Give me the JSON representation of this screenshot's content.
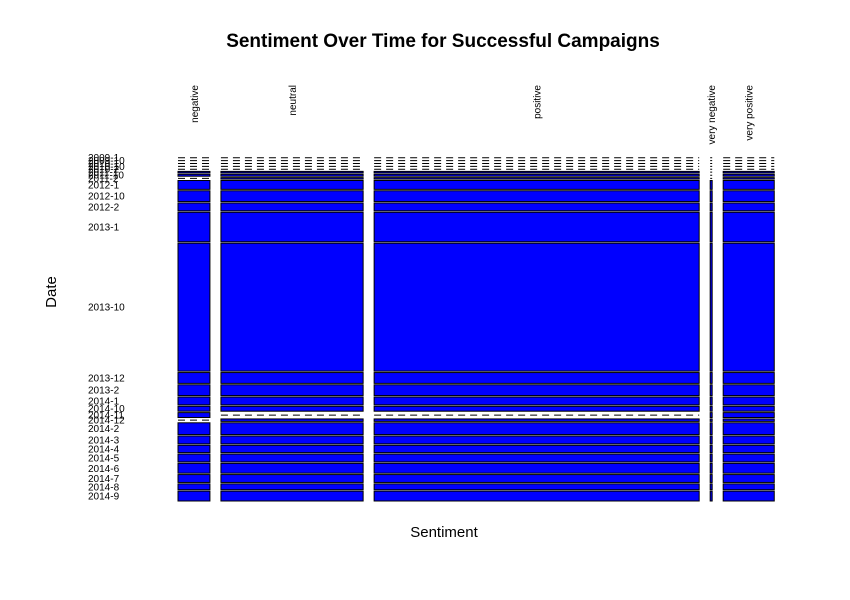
{
  "chart_data": {
    "type": "mosaic",
    "title": "Sentiment Over Time for Successful Campaigns",
    "xlabel": "Sentiment",
    "ylabel": "Date",
    "fill_color": "#0000ff",
    "outline_color": "#000000",
    "columns": [
      {
        "label": "negative",
        "share": 0.055
      },
      {
        "label": "neutral",
        "share": 0.245
      },
      {
        "label": "positive",
        "share": 0.56
      },
      {
        "label": "very negative",
        "share": 0.003
      },
      {
        "label": "very positive",
        "share": 0.088
      }
    ],
    "rows": [
      {
        "label": "2009-1",
        "share": 0.003,
        "values": [
          0,
          0,
          0,
          0,
          0
        ]
      },
      {
        "label": "2009-10",
        "share": 0.003,
        "values": [
          0,
          0,
          0,
          0,
          0
        ]
      },
      {
        "label": "2010-1",
        "share": 0.003,
        "values": [
          0,
          0,
          0,
          0,
          0
        ]
      },
      {
        "label": "2010-10",
        "share": 0.003,
        "values": [
          0,
          0,
          0,
          0,
          0
        ]
      },
      {
        "label": "2010-2",
        "share": 0.003,
        "values": [
          0,
          0,
          0,
          0,
          0
        ]
      },
      {
        "label": "2011-1",
        "share": 0.003,
        "values": [
          0.003,
          0.003,
          0.003,
          0,
          0.003
        ]
      },
      {
        "label": "2011-10",
        "share": 0.004,
        "values": [
          0.003,
          0.003,
          0.003,
          0,
          0.003
        ]
      },
      {
        "label": "2011-2",
        "share": 0.003,
        "values": [
          0,
          0.003,
          0.003,
          0,
          0.003
        ]
      },
      {
        "label": "2012-1",
        "share": 0.018,
        "values": [
          0.009,
          0.009,
          0.009,
          0.009,
          0.009
        ]
      },
      {
        "label": "2012-10",
        "share": 0.022,
        "values": [
          0.011,
          0.011,
          0.011,
          0.011,
          0.011
        ]
      },
      {
        "label": "2012-2",
        "share": 0.016,
        "values": [
          0.008,
          0.008,
          0.008,
          0.008,
          0.008
        ]
      },
      {
        "label": "2013-1",
        "share": 0.06,
        "values": [
          0.03,
          0.03,
          0.03,
          0.03,
          0.03
        ]
      },
      {
        "label": "2013-10",
        "share": 0.26,
        "values": [
          0.13,
          0.13,
          0.13,
          0.13,
          0.13
        ]
      },
      {
        "label": "2013-12",
        "share": 0.022,
        "values": [
          0.011,
          0.011,
          0.011,
          0.011,
          0.011
        ]
      },
      {
        "label": "2013-2",
        "share": 0.022,
        "values": [
          0.011,
          0.011,
          0.011,
          0.011,
          0.011
        ]
      },
      {
        "label": "2014-1",
        "share": 0.016,
        "values": [
          0.008,
          0.008,
          0.008,
          0.008,
          0.008
        ]
      },
      {
        "label": "2014-10",
        "share": 0.01,
        "values": [
          0.005,
          0.005,
          0.005,
          0.005,
          0.005
        ]
      },
      {
        "label": "2014-11",
        "share": 0.01,
        "values": [
          0.005,
          0,
          0,
          0.005,
          0.005
        ]
      },
      {
        "label": "2014-12",
        "share": 0.005,
        "values": [
          0,
          0.005,
          0.005,
          0.005,
          0.005
        ]
      },
      {
        "label": "2014-2",
        "share": 0.024,
        "values": [
          0.012,
          0.012,
          0.012,
          0.012,
          0.012
        ]
      },
      {
        "label": "2014-3",
        "share": 0.016,
        "values": [
          0.008,
          0.008,
          0.008,
          0.008,
          0.008
        ]
      },
      {
        "label": "2014-4",
        "share": 0.015,
        "values": [
          0.007,
          0.007,
          0.007,
          0.007,
          0.007
        ]
      },
      {
        "label": "2014-5",
        "share": 0.016,
        "values": [
          0.008,
          0.008,
          0.008,
          0.008,
          0.008
        ]
      },
      {
        "label": "2014-6",
        "share": 0.02,
        "values": [
          0.01,
          0.01,
          0.01,
          0.01,
          0.01
        ]
      },
      {
        "label": "2014-7",
        "share": 0.016,
        "values": [
          0.008,
          0.008,
          0.008,
          0.008,
          0.008
        ]
      },
      {
        "label": "2014-8",
        "share": 0.012,
        "values": [
          0.006,
          0.006,
          0.006,
          0.006,
          0.006
        ]
      },
      {
        "label": "2014-9",
        "share": 0.02,
        "values": [
          0.01,
          0.01,
          0.01,
          0.01,
          0.01
        ]
      }
    ],
    "grid": false,
    "legend": "none"
  }
}
